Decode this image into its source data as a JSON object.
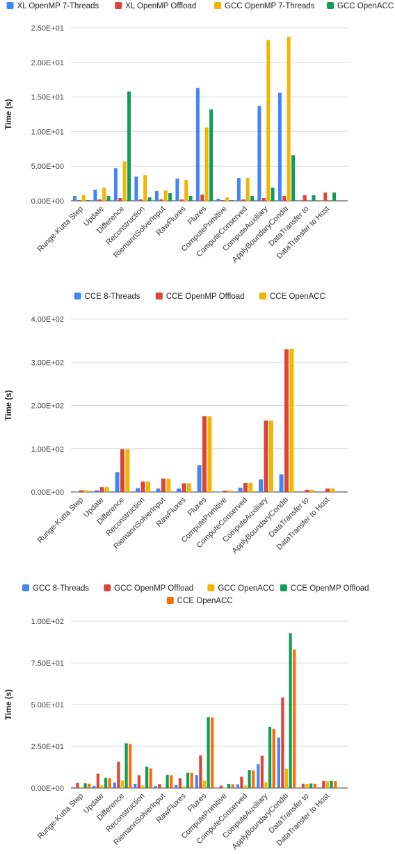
{
  "chart_data": [
    {
      "type": "bar",
      "ylabel": "Time (s)",
      "ylim": [
        0,
        25
      ],
      "y_ticks": [
        0,
        5,
        10,
        15,
        20,
        25
      ],
      "y_tick_labels": [
        "0.00E+00",
        "5.00E+00",
        "1.00E+01",
        "1.50E+01",
        "2.00E+01",
        "2.50E+01"
      ],
      "grid": true,
      "legend_position": "top",
      "categories": [
        "Runge-Kutta Step",
        "Update",
        "Difference",
        "Reconstruction",
        "RiemannSolverInput",
        "RawFluxes",
        "Fluxes",
        "ComputePrimitive",
        "ComputeConserved",
        "ComputeAuxiliary",
        "ApplyBoundaryConditi",
        "DataTransfer to",
        "DataTransfer to Host"
      ],
      "series": [
        {
          "name": "XL OpenMP 7-Threads",
          "color": "#4285f4",
          "values": [
            0.7,
            1.6,
            4.7,
            3.5,
            1.4,
            3.2,
            16.3,
            0.3,
            3.3,
            13.7,
            15.6,
            0,
            0
          ]
        },
        {
          "name": "XL OpenMP Offload",
          "color": "#db4437",
          "values": [
            0.1,
            0.2,
            0.4,
            0.2,
            0.2,
            0.2,
            0.9,
            0.1,
            0.2,
            0.4,
            0.7,
            0.8,
            1.2
          ]
        },
        {
          "name": "GCC OpenMP 7-Threads",
          "color": "#f4b400",
          "values": [
            0.8,
            1.9,
            5.7,
            3.7,
            1.5,
            3.0,
            10.6,
            0.5,
            3.3,
            23.2,
            23.7,
            0,
            0
          ]
        },
        {
          "name": "GCC OpenACC",
          "color": "#0f9d58",
          "values": [
            0.1,
            0.7,
            15.8,
            0.5,
            1.1,
            0.7,
            13.2,
            0.1,
            0.7,
            1.9,
            6.6,
            0.8,
            1.2
          ]
        }
      ]
    },
    {
      "type": "bar",
      "ylabel": "Time (s)",
      "ylim": [
        0,
        400
      ],
      "y_ticks": [
        0,
        100,
        200,
        300,
        400
      ],
      "y_tick_labels": [
        "0.00E+00",
        "1.00E+02",
        "2.00E+02",
        "3.00E+02",
        "4.00E+02"
      ],
      "grid": true,
      "legend_position": "top",
      "categories": [
        "Runge-Kutta Step",
        "Update",
        "Difference",
        "Reconstruction",
        "RiemannSolverInput",
        "RawFluxes",
        "Fluxes",
        "ComputePrimitive",
        "ComputeConserved",
        "ComputeAuxiliary",
        "ApplyBoundaryConditi",
        "DataTransfer to",
        "DataTransfer to Host"
      ],
      "series": [
        {
          "name": "CCE 8-Threads",
          "color": "#4285f4",
          "values": [
            1,
            4,
            46,
            9,
            8,
            8,
            62,
            1,
            10,
            29,
            41,
            0,
            0
          ]
        },
        {
          "name": "CCE OpenMP Offload",
          "color": "#db4437",
          "values": [
            4,
            11,
            99,
            24,
            31,
            20,
            175,
            3,
            21,
            165,
            330,
            5,
            8
          ]
        },
        {
          "name": "CCE OpenACC",
          "color": "#f4b400",
          "values": [
            4,
            11,
            99,
            24,
            31,
            20,
            175,
            3,
            21,
            165,
            331,
            5,
            8
          ]
        }
      ]
    },
    {
      "type": "bar",
      "ylabel": "Time (s)",
      "ylim": [
        0,
        100
      ],
      "y_ticks": [
        0,
        25,
        50,
        75,
        100
      ],
      "y_tick_labels": [
        "0.00E+00",
        "2.50E+01",
        "5.00E+01",
        "7.50E+01",
        "1.00E+02"
      ],
      "grid": true,
      "legend_position": "top",
      "categories": [
        "Runge-Kutta Step",
        "Update",
        "Difference",
        "Reconstruction",
        "RiemannSolverInput",
        "RawFluxes",
        "Fluxes",
        "ComputePrimitive",
        "ComputeConserved",
        "ComputeAuxiliary",
        "ApplyBoundaryConditi",
        "DataTransfer to",
        "DataTransfer to Host"
      ],
      "series": [
        {
          "name": "GCC 8-Threads",
          "color": "#4285f4",
          "values": [
            0.5,
            1.3,
            3.2,
            2.5,
            1.2,
            1.8,
            7.8,
            0.3,
            2.2,
            14.3,
            30.2,
            0,
            0
          ]
        },
        {
          "name": "GCC OpenMP Offload",
          "color": "#db4437",
          "values": [
            3.0,
            8.5,
            15.7,
            7.7,
            2.4,
            5.8,
            19.5,
            1.4,
            6.8,
            19.3,
            54.3,
            2.6,
            4.2
          ]
        },
        {
          "name": "GCC OpenACC",
          "color": "#f4b400",
          "values": [
            0.5,
            1.5,
            4.5,
            1.4,
            0.4,
            1.0,
            4.4,
            0.2,
            1.4,
            3.4,
            11.5,
            2.5,
            4.0
          ]
        },
        {
          "name": "CCE OpenMP Offload",
          "color": "#0f9d58",
          "values": [
            2.8,
            6.0,
            26.8,
            12.7,
            7.9,
            9.2,
            42.4,
            2.5,
            10.8,
            36.7,
            92.8,
            2.7,
            4.3
          ]
        },
        {
          "name": "CCE OpenACC",
          "color": "#ff6d01",
          "values": [
            2.6,
            5.8,
            26.4,
            11.7,
            7.7,
            9.1,
            42.3,
            2.2,
            10.6,
            35.5,
            83.0,
            2.6,
            4.1
          ]
        }
      ]
    }
  ]
}
